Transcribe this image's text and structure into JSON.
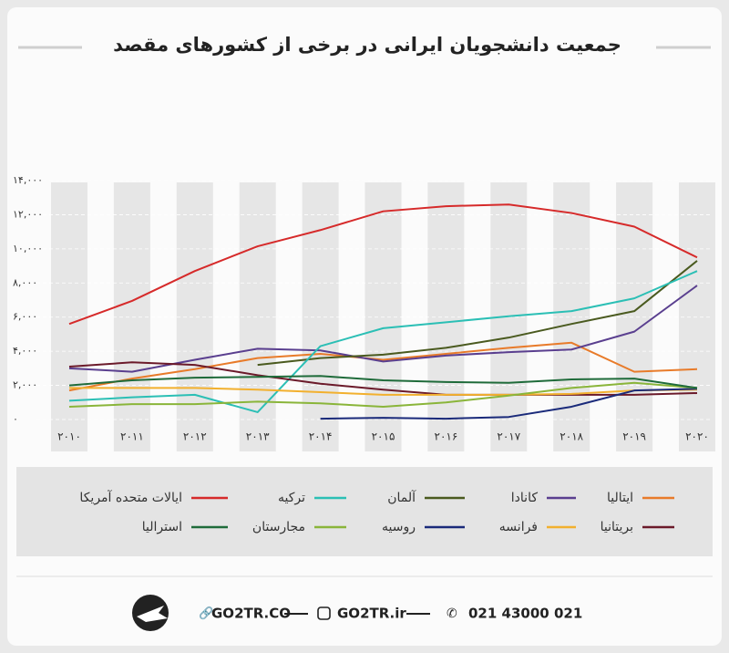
{
  "chart_data": {
    "type": "line",
    "title": "جمعیت دانشجویان ایرانی در برخی از کشورهای مقصد",
    "categories": [
      "۲۰۱۰",
      "۲۰۱۱",
      "۲۰۱۲",
      "۲۰۱۳",
      "۲۰۱۴",
      "۲۰۱۵",
      "۲۰۱۶",
      "۲۰۱۷",
      "۲۰۱۸",
      "۲۰۱۹",
      "۲۰۲۰"
    ],
    "ylim": [
      0,
      14000
    ],
    "yticks": [
      {
        "value": 0,
        "label": "۰"
      },
      {
        "value": 2000,
        "label": "۲,۰۰۰"
      },
      {
        "value": 4000,
        "label": "۴,۰۰۰"
      },
      {
        "value": 6000,
        "label": "۶,۰۰۰"
      },
      {
        "value": 8000,
        "label": "۸,۰۰۰"
      },
      {
        "value": 10000,
        "label": "۱۰,۰۰۰"
      },
      {
        "value": 12000,
        "label": "۱۲,۰۰۰"
      },
      {
        "value": 14000,
        "label": "۱۴,۰۰۰"
      }
    ],
    "series": [
      {
        "name": "ایتالیا",
        "color": "#e87b2a",
        "values": [
          1700,
          2400,
          2950,
          3600,
          3850,
          3500,
          3850,
          4200,
          4500,
          2800,
          2950
        ]
      },
      {
        "name": "کانادا",
        "color": "#5a3f8f",
        "values": [
          3000,
          2800,
          3500,
          4150,
          4050,
          3400,
          3750,
          3950,
          4100,
          5150,
          7850
        ]
      },
      {
        "name": "آلمان",
        "color": "#4a5a1f",
        "values": [
          null,
          null,
          null,
          3200,
          3600,
          3800,
          4200,
          4800,
          5600,
          6350,
          9300
        ]
      },
      {
        "name": "ترکیه",
        "color": "#2bbfb5",
        "values": [
          1100,
          1300,
          1450,
          430,
          4300,
          5350,
          5700,
          6050,
          6350,
          7100,
          8700
        ]
      },
      {
        "name": "ایالات متحده آمریکا",
        "color": "#d62a2a",
        "values": [
          5600,
          6950,
          8700,
          10150,
          11100,
          12200,
          12500,
          12600,
          12100,
          11300,
          9500
        ]
      },
      {
        "name": "بریتانیا",
        "color": "#6b1a2a",
        "values": [
          3100,
          3350,
          3200,
          2600,
          2100,
          1750,
          1450,
          1450,
          1450,
          1450,
          1550
        ]
      },
      {
        "name": "فرانسه",
        "color": "#f2b02e",
        "values": [
          1850,
          1850,
          1850,
          1750,
          1600,
          1450,
          1450,
          1450,
          1500,
          1700,
          1750
        ]
      },
      {
        "name": "روسیه",
        "color": "#1a2a7a",
        "values": [
          null,
          null,
          null,
          null,
          50,
          100,
          50,
          150,
          750,
          1700,
          1800
        ]
      },
      {
        "name": "مجارستان",
        "color": "#8ab53a",
        "values": [
          750,
          900,
          900,
          1050,
          950,
          750,
          1000,
          1400,
          1850,
          2150,
          1850
        ]
      },
      {
        "name": "استرالیا",
        "color": "#1f6b3a",
        "values": [
          2000,
          2300,
          2450,
          2500,
          2550,
          2300,
          2200,
          2150,
          2350,
          2400,
          1850
        ]
      }
    ]
  },
  "footer": {
    "website": "GO2TR.CO",
    "instagram": "GO2TR.ir",
    "phone": "021 43000 021"
  }
}
